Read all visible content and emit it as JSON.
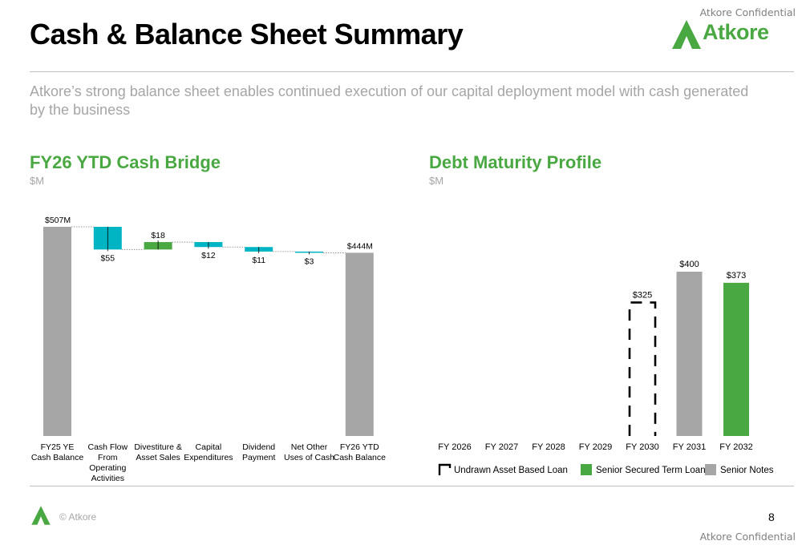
{
  "header": {
    "confidential_top": "Atkore Confidential",
    "title": "Cash & Balance Sheet Summary",
    "logo_text": "Atkore",
    "subtitle": "Atkore’s strong balance sheet enables continued execution of our capital deployment model with cash generated by the business"
  },
  "left_section": {
    "title": "FY26 YTD Cash Bridge",
    "unit": "$M"
  },
  "right_section": {
    "title": "Debt Maturity Profile",
    "unit": "$M"
  },
  "footer": {
    "copyright": "© Atkore",
    "page_number": "8",
    "confidential_bottom": "Atkore Confidential"
  },
  "colors": {
    "green": "#4aa842",
    "teal": "#00b5c3",
    "gray": "#a6a6a6",
    "dark": "#000000"
  },
  "chart_data": [
    {
      "type": "bar",
      "subtype": "waterfall",
      "title": "FY26 YTD Cash Bridge",
      "ylabel": "$M",
      "ylim": [
        0,
        507
      ],
      "steps": [
        {
          "label": [
            "FY25 YE",
            "Cash Balance"
          ],
          "kind": "total",
          "value": 507,
          "display": "$507M",
          "label_pos": "above"
        },
        {
          "label": [
            "Cash Flow",
            "From",
            "Operating",
            "Activities"
          ],
          "kind": "decrease",
          "value": 55,
          "display": "$55",
          "label_pos": "below"
        },
        {
          "label": [
            "Divestiture &",
            "Asset Sales"
          ],
          "kind": "increase",
          "value": 18,
          "display": "$18",
          "label_pos": "above"
        },
        {
          "label": [
            "Capital",
            "Expenditures"
          ],
          "kind": "decrease",
          "value": 12,
          "display": "$12",
          "label_pos": "below"
        },
        {
          "label": [
            "Dividend",
            "Payment"
          ],
          "kind": "decrease",
          "value": 11,
          "display": "$11",
          "label_pos": "below"
        },
        {
          "label": [
            "Net Other",
            "Uses of Cash"
          ],
          "kind": "decrease",
          "value": 3,
          "display": "$3",
          "label_pos": "below"
        },
        {
          "label": [
            "FY26 YTD",
            "Cash Balance"
          ],
          "kind": "total",
          "value": 444,
          "display": "$444M",
          "label_pos": "above"
        }
      ]
    },
    {
      "type": "bar",
      "title": "Debt Maturity Profile",
      "ylabel": "$M",
      "ylim": [
        0,
        400
      ],
      "categories": [
        "FY 2026",
        "FY 2027",
        "FY 2028",
        "FY 2029",
        "FY 2030",
        "FY 2031",
        "FY 2032"
      ],
      "series": [
        {
          "name": "Undrawn Asset Based Loan",
          "style": "dashed-outline",
          "values": [
            0,
            0,
            0,
            0,
            325,
            0,
            0
          ],
          "labels": [
            "",
            "",
            "",
            "",
            "$325",
            "",
            ""
          ]
        },
        {
          "name": "Senior Secured Term Loan",
          "color": "#4aa842",
          "values": [
            0,
            0,
            0,
            0,
            0,
            0,
            373
          ],
          "labels": [
            "",
            "",
            "",
            "",
            "",
            "",
            "$373"
          ]
        },
        {
          "name": "Senior Notes",
          "color": "#a6a6a6",
          "values": [
            0,
            0,
            0,
            0,
            0,
            400,
            0
          ],
          "labels": [
            "",
            "",
            "",
            "",
            "",
            "$400",
            ""
          ]
        }
      ],
      "legend": "bottom"
    }
  ]
}
